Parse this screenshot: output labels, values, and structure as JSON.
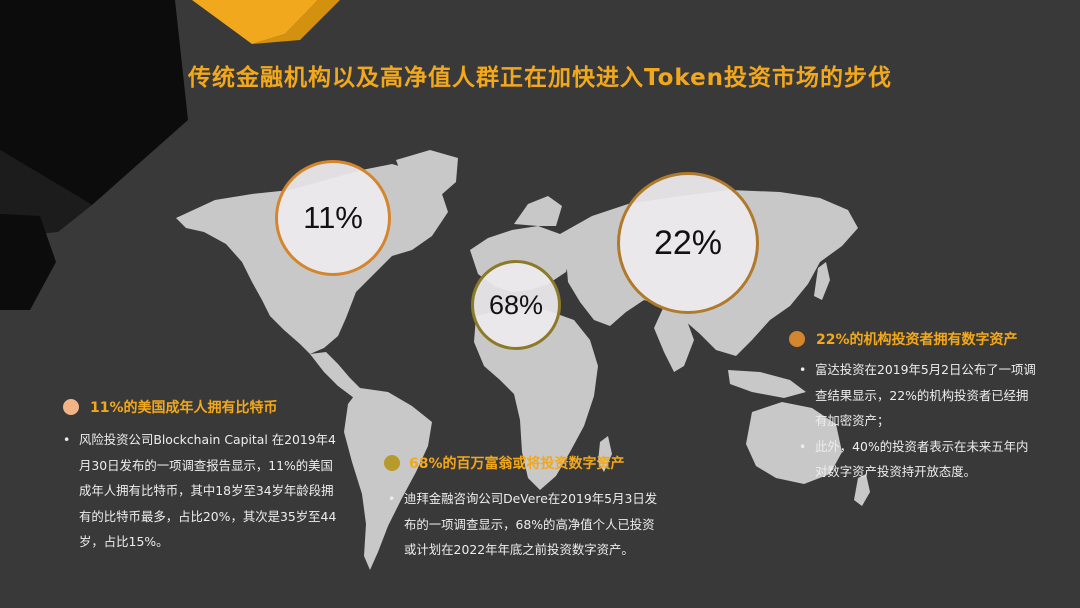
{
  "title": "传统金融机构以及高净值人群正在加快进入Token投资市场的步伐",
  "colors": {
    "accent": "#f2a81c",
    "background": "#3a3939",
    "land": "#c9c8c9",
    "ring_orange": "#d4862e",
    "ring_olive": "#8c7a2a",
    "bullet_olive": "#b69a2c"
  },
  "bubbles": [
    {
      "label": "11%"
    },
    {
      "label": "68%"
    },
    {
      "label": "22%"
    }
  ],
  "sections": {
    "usa": {
      "heading": "11%的美国成年人拥有比特币",
      "points": [
        "风险投资公司Blockchain Capital 在2019年4月30日发布的一项调查报告显示，11%的美国成年人拥有比特币，其中18岁至34岁年龄段拥有的比特币最多，占比20%，其次是35岁至44岁，占比15%。"
      ]
    },
    "millionaires": {
      "heading": "68%的百万富翁或将投资数字资产",
      "points": [
        "迪拜金融咨询公司DeVere在2019年5月3日发布的一项调查显示，68%的高净值个人已投资或计划在2022年年底之前投资数字资产。"
      ]
    },
    "institutions": {
      "heading": "22%的机构投资者拥有数字资产",
      "points": [
        "富达投资在2019年5月2日公布了一项调查结果显示，22%的机构投资者已经拥有加密资产；",
        "此外，40%的投资者表示在未来五年内对数字资产投资持开放态度。"
      ]
    }
  }
}
